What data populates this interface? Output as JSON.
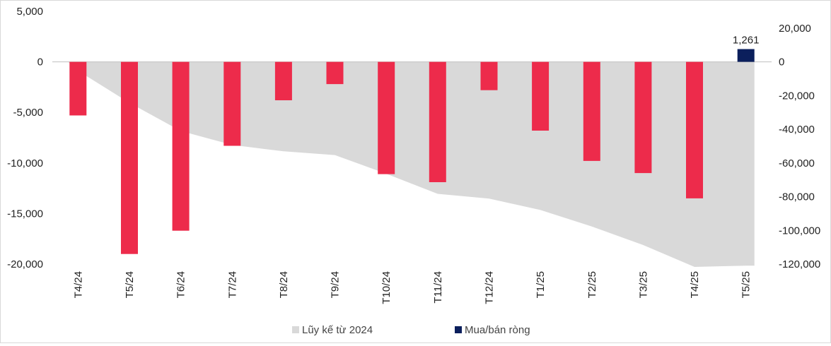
{
  "chart_data": {
    "type": "bar",
    "categories": [
      "T4/24",
      "T5/24",
      "T6/24",
      "T7/24",
      "T8/24",
      "T9/24",
      "T10/24",
      "T11/24",
      "T12/24",
      "T1/25",
      "T2/25",
      "T3/25",
      "T4/25",
      "T5/25"
    ],
    "series": [
      {
        "name": "Mua/bán ròng",
        "type": "bar",
        "axis": "left",
        "values": [
          -5300,
          -19000,
          -16700,
          -8300,
          -3800,
          -2200,
          -11100,
          -11900,
          -2800,
          -6800,
          -9800,
          -11000,
          -13500,
          1261
        ],
        "colors": [
          "#ed2b4b",
          "#ed2b4b",
          "#ed2b4b",
          "#ed2b4b",
          "#ed2b4b",
          "#ed2b4b",
          "#ed2b4b",
          "#ed2b4b",
          "#ed2b4b",
          "#ed2b4b",
          "#ed2b4b",
          "#ed2b4b",
          "#ed2b4b",
          "#0b1f5c"
        ]
      },
      {
        "name": "Lũy kế từ 2024",
        "type": "area",
        "axis": "right",
        "values": [
          -5300,
          -24300,
          -41000,
          -49300,
          -53100,
          -55300,
          -66400,
          -78300,
          -81100,
          -87900,
          -97700,
          -108700,
          -122200,
          -120941
        ],
        "color": "#d9d9d9"
      }
    ],
    "left_axis": {
      "min": -20000,
      "max": 5000,
      "step": 5000,
      "ticks": [
        "-20,000",
        "-15,000",
        "-10,000",
        "-5,000",
        "0",
        "5,000"
      ]
    },
    "right_axis": {
      "min": -120000,
      "max": 30000,
      "step": 20000,
      "ticks": [
        "-120,000",
        "-100,000",
        "-80,000",
        "-60,000",
        "-40,000",
        "-20,000",
        "0",
        "20,000"
      ]
    },
    "data_labels": [
      {
        "category": "T5/25",
        "text": "1,261"
      }
    ],
    "legend": {
      "placement": "bottom",
      "items": [
        {
          "label": "Lũy kế từ 2024",
          "color": "#d9d9d9"
        },
        {
          "label": "Mua/bán ròng",
          "color": "#0b1f5c"
        }
      ]
    },
    "grid": false
  }
}
